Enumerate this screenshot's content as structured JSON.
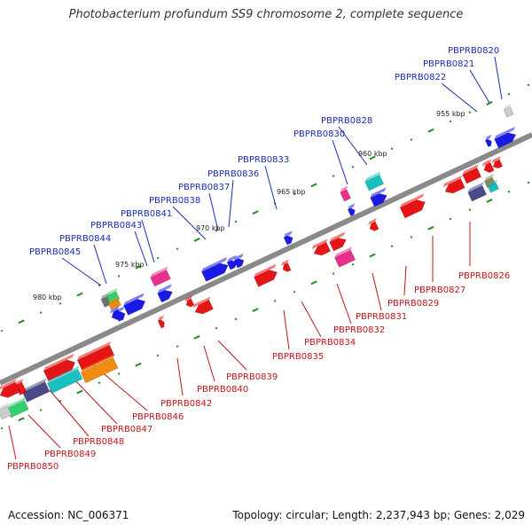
{
  "title": "Photobacterium profundum SS9 chromosome 2, complete sequence",
  "footer": {
    "accession": "Accession: NC_006371",
    "info": "Topology: circular; Length: 2,237,943 bp; Genes: 2,029"
  },
  "colors": {
    "backbone": "#8a8a8a",
    "forward_strand": "#1a1ae6",
    "reverse_strand": "#e61414",
    "tick": "#1f8a1f",
    "label_top": "#1a2db0",
    "label_bottom": "#c0141a",
    "magenta": "#e8308c",
    "teal": "#18c0c0",
    "orange": "#f08c10",
    "slate": "#4a4a8a",
    "green": "#30d070"
  },
  "kbp_labels": [
    "955 kbp",
    "960 kbp",
    "965 kbp",
    "970 kbp",
    "975 kbp",
    "980 kbp"
  ],
  "genes_top": [
    "PBPRB0820",
    "PBPRB0821",
    "PBPRB0822",
    "PBPRB0828",
    "PBPRB0830",
    "PBPRB0833",
    "PBPRB0836",
    "PBPRB0837",
    "PBPRB0838",
    "PBPRB0841",
    "PBPRB0843",
    "PBPRB0844",
    "PBPRB0845"
  ],
  "genes_bottom": [
    "PBPRB0826",
    "PBPRB0827",
    "PBPRB0829",
    "PBPRB0831",
    "PBPRB0832",
    "PBPRB0834",
    "PBPRB0835",
    "PBPRB0839",
    "PBPRB0840",
    "PBPRB0842",
    "PBPRB0846",
    "PBPRB0847",
    "PBPRB0848",
    "PBPRB0849",
    "PBPRB0850"
  ]
}
